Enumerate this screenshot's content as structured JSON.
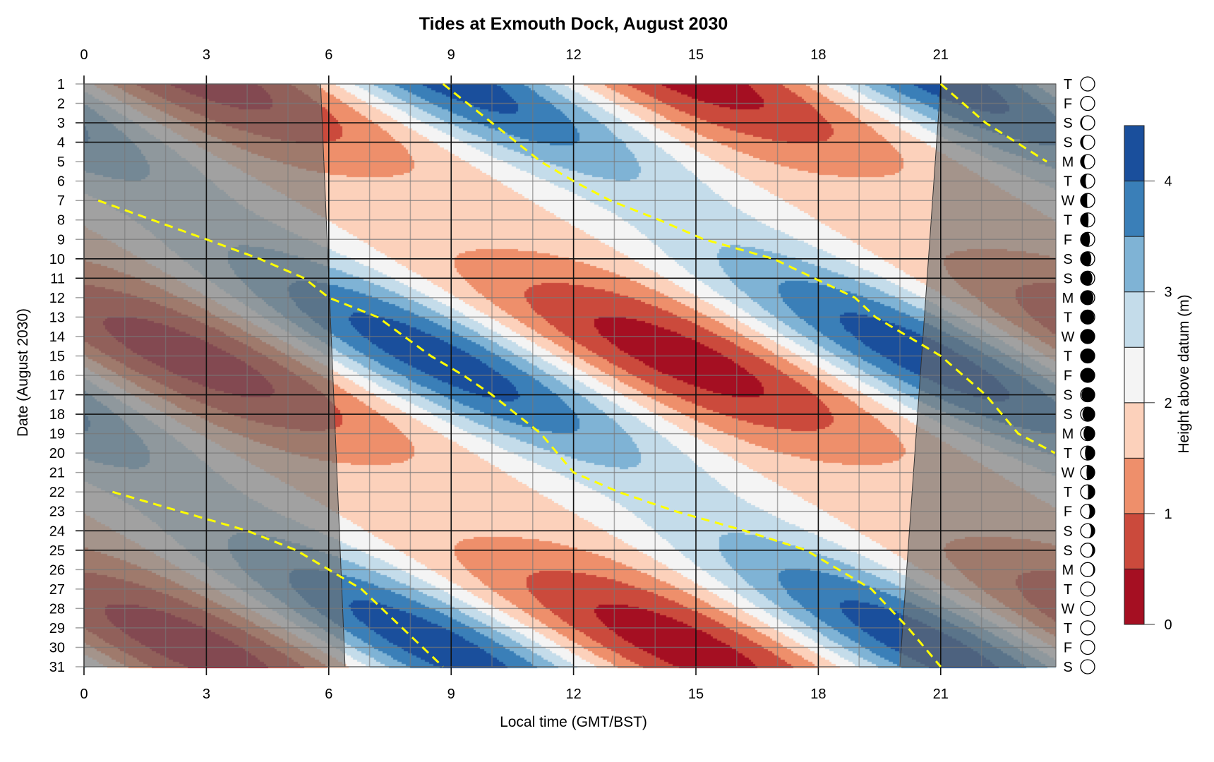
{
  "chart_data": {
    "type": "heatmap",
    "title": "Tides at Exmouth Dock, August 2030",
    "xlabel": "Local time (GMT/BST)",
    "ylabel": "Date (August 2030)",
    "colorbar_label": "Height above datum (m)",
    "xlim": [
      0,
      24
    ],
    "ylim": [
      1,
      31
    ],
    "x_ticks": [
      0,
      3,
      6,
      9,
      12,
      15,
      18,
      21
    ],
    "days": [
      1,
      2,
      3,
      4,
      5,
      6,
      7,
      8,
      9,
      10,
      11,
      12,
      13,
      14,
      15,
      16,
      17,
      18,
      19,
      20,
      21,
      22,
      23,
      24,
      25,
      26,
      27,
      28,
      29,
      30,
      31
    ],
    "weekdays": [
      "T",
      "F",
      "S",
      "S",
      "M",
      "T",
      "W",
      "T",
      "F",
      "S",
      "S",
      "M",
      "T",
      "W",
      "T",
      "F",
      "S",
      "S",
      "M",
      "T",
      "W",
      "T",
      "F",
      "S",
      "S",
      "M",
      "T",
      "W",
      "T",
      "F",
      "S"
    ],
    "weekend_days": [
      3,
      4,
      10,
      11,
      17,
      18,
      24,
      25
    ],
    "moon_illumination": [
      0.02,
      0.05,
      0.1,
      0.17,
      0.26,
      0.36,
      0.46,
      0.56,
      0.66,
      0.76,
      0.84,
      0.91,
      0.96,
      0.99,
      1.0,
      0.98,
      0.94,
      0.87,
      0.79,
      0.69,
      0.58,
      0.47,
      0.36,
      0.26,
      0.17,
      0.1,
      0.05,
      0.02,
      0.0,
      0.01,
      0.03
    ],
    "moon_waxing": [
      true,
      true,
      true,
      true,
      true,
      true,
      true,
      true,
      true,
      true,
      true,
      true,
      true,
      true,
      false,
      false,
      false,
      false,
      false,
      false,
      false,
      false,
      false,
      false,
      false,
      false,
      false,
      false,
      false,
      true,
      true
    ],
    "colorbar_ticks": [
      0,
      1,
      2,
      3,
      4
    ],
    "levels": [
      0,
      0.5,
      1,
      1.5,
      2,
      2.5,
      3,
      3.5,
      4,
      4.5
    ],
    "level_colors": [
      "#a50f22",
      "#cb4a3c",
      "#ee8f6b",
      "#fcd1bb",
      "#f4f4f4",
      "#c4dcea",
      "#7fb3d5",
      "#3a7fb8",
      "#1a4f9c"
    ],
    "night": {
      "sunrise_day1": 5.8,
      "sunrise_day31": 6.4,
      "sunset_day1": 21.0,
      "sunset_day31": 20.0
    },
    "dashed_lines": [
      [
        [
          1,
          8.8
        ],
        [
          3,
          10
        ],
        [
          5,
          11.2
        ],
        [
          6,
          12
        ],
        [
          7,
          12.9
        ],
        [
          8,
          14.1
        ],
        [
          9,
          15.2
        ],
        [
          10,
          16.9
        ],
        [
          11,
          17.9
        ],
        [
          12,
          18.9
        ],
        [
          13,
          19.4
        ],
        [
          15,
          21
        ],
        [
          17,
          22.1
        ],
        [
          19,
          22.9
        ],
        [
          20,
          23.8
        ]
      ],
      [
        [
          1,
          21
        ],
        [
          3,
          22.1
        ],
        [
          5,
          23.6
        ]
      ],
      [
        [
          7,
          0.35
        ],
        [
          9,
          3
        ],
        [
          10,
          4.3
        ],
        [
          11,
          5.4
        ],
        [
          12,
          6
        ],
        [
          13,
          7.2
        ],
        [
          15,
          8.5
        ],
        [
          16,
          9.3
        ],
        [
          17,
          10
        ],
        [
          18,
          10.6
        ],
        [
          19,
          11.2
        ],
        [
          21,
          12
        ],
        [
          22,
          13.1
        ],
        [
          23,
          14.5
        ],
        [
          24,
          16.2
        ],
        [
          25,
          17.7
        ],
        [
          26,
          18.5
        ],
        [
          27,
          19.3
        ],
        [
          29,
          20.2
        ],
        [
          31,
          21
        ]
      ],
      [
        [
          22,
          0.7
        ],
        [
          24,
          4
        ],
        [
          25,
          5.2
        ],
        [
          26,
          6
        ],
        [
          27,
          6.8
        ],
        [
          29,
          7.8
        ],
        [
          31,
          8.8
        ]
      ]
    ],
    "dashed_color": "#ffff00"
  }
}
